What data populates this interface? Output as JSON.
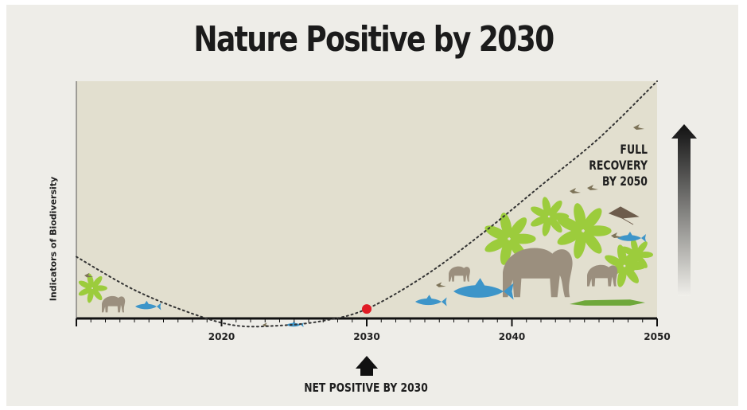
{
  "title": "Nature Positive by 2030",
  "colors": {
    "plot_background": "#e2dfcf",
    "curve": "#333333",
    "marker": "#e01b24",
    "plant_green": "#9ccc3c",
    "animal_grey": "#9b8f7e",
    "fish_blue": "#3d95c9"
  },
  "chart_data": {
    "type": "line",
    "title": "Nature Positive by 2030",
    "ylabel": "Indicators of Biodiversity",
    "xlabel": "",
    "x_ticks": [
      2020,
      2030,
      2040,
      2050
    ],
    "xlim": [
      2010,
      2050
    ],
    "ylim": [
      0,
      100
    ],
    "grid": false,
    "series": [
      {
        "style": "dotted",
        "x": [
          2010,
          2014,
          2018,
          2021,
          2024,
          2027,
          2030,
          2034,
          2038,
          2042,
          2046,
          2050
        ],
        "y": [
          26,
          12,
          2,
          -3,
          -3,
          -1,
          4,
          18,
          36,
          56,
          76,
          100
        ]
      }
    ],
    "highlight_point": {
      "x": 2030,
      "y": 4
    }
  },
  "annotations": {
    "full_recovery_lines": [
      "FULL",
      "RECOVERY",
      "BY 2050"
    ],
    "net_positive": "NET POSITIVE BY 2030"
  },
  "icons": [
    "up-gradient-arrow-icon",
    "up-arrow-icon",
    "elephant-icon",
    "shark-icon",
    "crocodile-icon",
    "bird-icon",
    "manta-ray-icon",
    "plant-icon"
  ]
}
